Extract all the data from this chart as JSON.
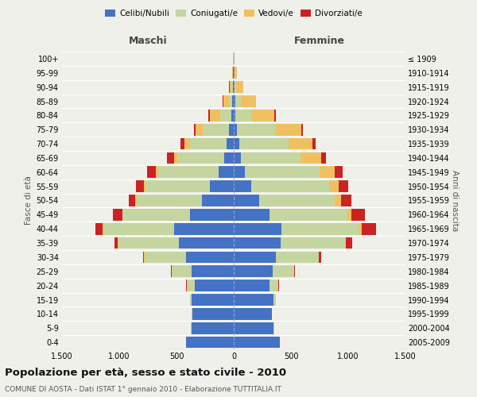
{
  "age_groups": [
    "0-4",
    "5-9",
    "10-14",
    "15-19",
    "20-24",
    "25-29",
    "30-34",
    "35-39",
    "40-44",
    "45-49",
    "50-54",
    "55-59",
    "60-64",
    "65-69",
    "70-74",
    "75-79",
    "80-84",
    "85-89",
    "90-94",
    "95-99",
    "100+"
  ],
  "birth_years": [
    "2005-2009",
    "2000-2004",
    "1995-1999",
    "1990-1994",
    "1985-1989",
    "1980-1984",
    "1975-1979",
    "1970-1974",
    "1965-1969",
    "1960-1964",
    "1955-1959",
    "1950-1954",
    "1945-1949",
    "1940-1944",
    "1935-1939",
    "1930-1934",
    "1925-1929",
    "1920-1924",
    "1915-1919",
    "1910-1914",
    "≤ 1909"
  ],
  "colors": {
    "celibe": "#4472c4",
    "coniugato": "#c5d5a0",
    "vedovo": "#f0c060",
    "divorziato": "#cc2222"
  },
  "maschi": {
    "celibe": [
      420,
      370,
      360,
      370,
      340,
      370,
      420,
      480,
      520,
      380,
      280,
      210,
      130,
      80,
      60,
      40,
      20,
      12,
      8,
      4,
      2
    ],
    "coniugato": [
      0,
      2,
      5,
      15,
      70,
      170,
      360,
      530,
      620,
      590,
      570,
      560,
      530,
      410,
      320,
      230,
      100,
      30,
      10,
      2,
      0
    ],
    "vedovo": [
      0,
      0,
      0,
      0,
      2,
      2,
      2,
      3,
      5,
      5,
      10,
      15,
      20,
      30,
      50,
      60,
      90,
      50,
      20,
      5,
      2
    ],
    "divorziato": [
      0,
      0,
      0,
      0,
      2,
      5,
      10,
      30,
      60,
      80,
      60,
      70,
      80,
      60,
      35,
      20,
      15,
      5,
      2,
      0,
      0
    ]
  },
  "femmine": {
    "nubile": [
      400,
      350,
      330,
      350,
      310,
      340,
      370,
      410,
      420,
      310,
      220,
      150,
      100,
      65,
      50,
      30,
      15,
      12,
      8,
      4,
      2
    ],
    "coniugata": [
      0,
      2,
      5,
      20,
      80,
      185,
      370,
      560,
      680,
      680,
      660,
      680,
      650,
      520,
      430,
      330,
      140,
      50,
      15,
      2,
      0
    ],
    "vedova": [
      0,
      0,
      0,
      0,
      2,
      2,
      4,
      8,
      15,
      35,
      60,
      90,
      130,
      180,
      210,
      230,
      200,
      130,
      60,
      20,
      5
    ],
    "divorziata": [
      0,
      0,
      0,
      0,
      2,
      5,
      20,
      60,
      130,
      120,
      90,
      80,
      70,
      40,
      25,
      15,
      10,
      5,
      2,
      0,
      0
    ]
  },
  "xlim": 1500,
  "xlabel_left": "Maschi",
  "xlabel_right": "Femmine",
  "title": "Popolazione per età, sesso e stato civile - 2010",
  "subtitle": "COMUNE DI AOSTA - Dati ISTAT 1° gennaio 2010 - Elaborazione TUTTITALIA.IT",
  "legend_labels": [
    "Celibi/Nubili",
    "Coniugati/e",
    "Vedovi/e",
    "Divorziati/e"
  ],
  "ylabel_left": "Fasce di età",
  "ylabel_right": "Anni di nascita",
  "background_color": "#f0f0eb"
}
